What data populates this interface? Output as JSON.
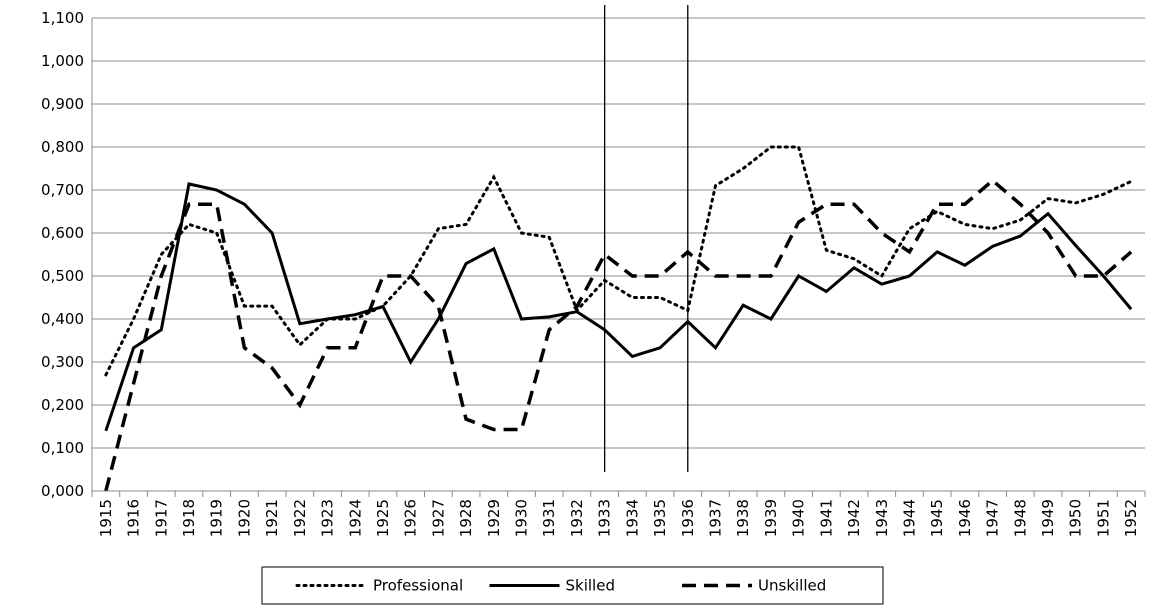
{
  "chart_data": {
    "type": "line",
    "categories": [
      "1915",
      "1916",
      "1917",
      "1918",
      "1919",
      "1920",
      "1921",
      "1922",
      "1923",
      "1924",
      "1925",
      "1926",
      "1927",
      "1928",
      "1929",
      "1930",
      "1931",
      "1932",
      "1933",
      "1934",
      "1935",
      "1936",
      "1937",
      "1938",
      "1939",
      "1940",
      "1941",
      "1942",
      "1943",
      "1944",
      "1945",
      "1946",
      "1947",
      "1948",
      "1949",
      "1950",
      "1951",
      "1952"
    ],
    "series": [
      {
        "name": "Professional",
        "color": "#000000",
        "line_style": "dotted",
        "values": [
          0.27,
          0.4,
          0.55,
          0.62,
          0.6,
          0.43,
          0.43,
          0.34,
          0.4,
          0.4,
          0.43,
          0.5,
          0.61,
          0.62,
          0.73,
          0.6,
          0.59,
          0.42,
          0.49,
          0.45,
          0.45,
          0.42,
          0.71,
          0.75,
          0.8,
          0.8,
          0.56,
          0.54,
          0.5,
          0.61,
          0.65,
          0.62,
          0.61,
          0.63,
          0.68,
          0.67,
          0.69,
          0.72
        ]
      },
      {
        "name": "Skilled",
        "color": "#000000",
        "line_style": "solid",
        "values": [
          0.14,
          0.333,
          0.375,
          0.714,
          0.7,
          0.667,
          0.6,
          0.389,
          0.4,
          0.41,
          0.429,
          0.3,
          0.4,
          0.529,
          0.563,
          0.4,
          0.405,
          0.417,
          0.375,
          0.313,
          0.333,
          0.394,
          0.333,
          0.432,
          0.4,
          0.5,
          0.464,
          0.519,
          0.481,
          0.5,
          0.556,
          0.525,
          0.569,
          0.593,
          0.645,
          0.571,
          0.5,
          0.423
        ]
      },
      {
        "name": "Unskilled",
        "color": "#000000",
        "line_style": "dashed",
        "values": [
          0,
          0.25,
          0.5,
          0.667,
          0.667,
          0.333,
          0.286,
          0.2,
          0.333,
          0.333,
          0.5,
          0.5,
          0.429,
          0.167,
          0.143,
          0.143,
          0.375,
          0.429,
          0.55,
          0.5,
          0.5,
          0.556,
          0.5,
          0.5,
          0.5,
          0.625,
          0.667,
          0.667,
          0.6,
          0.556,
          0.667,
          0.667,
          0.722,
          0.667,
          0.6,
          0.5,
          0.5,
          0.556
        ]
      }
    ],
    "ylim": [
      0,
      1.1
    ],
    "yticks": [
      {
        "value": 0,
        "label": "0,000"
      },
      {
        "value": 0.1,
        "label": "0,100"
      },
      {
        "value": 0.2,
        "label": "0,200"
      },
      {
        "value": 0.3,
        "label": "0,300"
      },
      {
        "value": 0.4,
        "label": "0,400"
      },
      {
        "value": 0.5,
        "label": "0,500"
      },
      {
        "value": 0.6,
        "label": "0,600"
      },
      {
        "value": 0.7,
        "label": "0,700"
      },
      {
        "value": 0.8,
        "label": "0,800"
      },
      {
        "value": 0.9,
        "label": "0,900"
      },
      {
        "value": 1.0,
        "label": "1,000"
      },
      {
        "value": 1.1,
        "label": "1,100"
      }
    ],
    "grid": true,
    "vertical_lines": [
      "1933",
      "1936"
    ],
    "legend": "bottom"
  }
}
